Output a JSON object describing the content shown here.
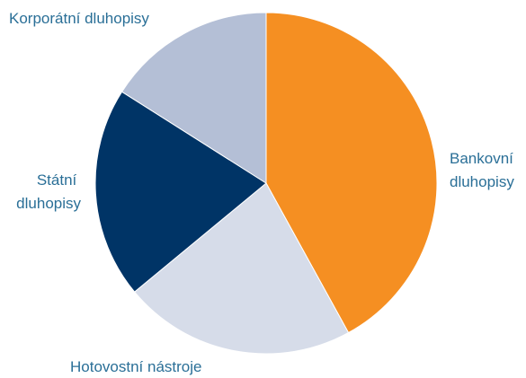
{
  "chart_data": {
    "type": "pie",
    "start_angle_deg": 0,
    "direction": "clockwise",
    "slices": [
      {
        "label": [
          "Bankovní",
          "dluhopisy"
        ],
        "value": 42,
        "color": "#f58f22"
      },
      {
        "label": [
          "Hotovostní nástroje"
        ],
        "value": 22,
        "color": "#d6dce9"
      },
      {
        "label": [
          "Státní",
          "dluhopisy"
        ],
        "value": 20,
        "color": "#003466"
      },
      {
        "label": [
          "Korporátní dluhopisy"
        ],
        "value": 16,
        "color": "#b4bfd6"
      }
    ],
    "legend": "none"
  }
}
